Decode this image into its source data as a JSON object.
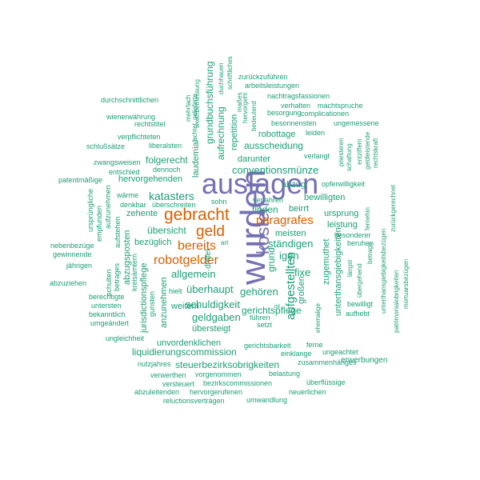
{
  "colors": {
    "green": "#1b9e77",
    "orange": "#d95f02",
    "purple": "#7570b3"
  },
  "words": {
    "wurden": "wurden",
    "auslagen": "auslagen",
    "kosten": "kosten",
    "gebracht": "gebracht",
    "geld": "geld",
    "paragrafes": "paragrafes",
    "bereits": "bereits",
    "robotgelder": "robotgelder",
    "aufgestellten": "aufgestellten",
    "katasters": "katasters",
    "conventionsmuenze": "conventionsmünze",
    "ausscheidung": "ausscheidung",
    "allgemein": "allgemein",
    "ueberhaupt": "überhaupt",
    "schuldigkeit": "schuldigkeit",
    "geldgaben": "geldgaben",
    "gehoeren": "gehören",
    "staendigen": "ständigen",
    "igen": "igen",
    "fixe": "fixe",
    "finden": "finden",
    "grund": "grund",
    "uebersicht": "übersicht",
    "bezueglich": "bezüglich",
    "zehente": "zehente",
    "folgerecht": "folgerecht",
    "hervorgehenden": "hervorgehenden",
    "darunter": "darunter",
    "robottage": "robottage",
    "abzug": "abzug",
    "bewilligten": "bewilligten",
    "ursprung": "ursprung",
    "leistung": "leistung",
    "meisten": "meisten",
    "beirrt": "beirrt",
    "gerichtspflege": "gerichtspflege",
    "uebersteigt": "übersteigt",
    "weitem": "weitem",
    "unvordenklichen": "unvordenklichen",
    "liquidierungscommission": "liquidierungscommission",
    "steuerbezirksobrigkeiten": "steuerbezirksobrigkeiten",
    "zugemuthet": "zugemuthet",
    "unterthansgiebigkeiten": "unterthansgiebigkeiten",
    "grossen": "großen",
    "grundbuchsfuehrung": "grundbuchsführung",
    "aufrechnung": "aufrechnung",
    "laudemial": "laudemial",
    "repetition": "repetition",
    "erwerbungen": "erwerbungen",
    "abzugsposten": "abzugsposten",
    "jurisdictionspflege": "jurisdictionspflege",
    "anzunehmen": "anzunehmen",
    "drittel": "drittel",
    "zurueckzufuehren": "zurückzuführen",
    "arbeitsleistungen": "arbeitsleistungen",
    "nachtragsfassionen": "nachtragsfassionen",
    "durchschnittlichen": "durchschnittlichen",
    "verhalten": "verhalten",
    "machtspruche": "machtspruche",
    "besorgung": "besorgung",
    "complicationen": "complicationen",
    "wienerwaehrung": "wienerwährung",
    "rechtstitel": "rechtstitel",
    "besonnensten": "besonnensten",
    "ungemessene": "ungemessene",
    "verpflichteten": "verpflichteten",
    "leiden": "leiden",
    "schlussaetze": "schlußsätze",
    "liberalsten": "liberalsten",
    "zwangsweisen": "zwangsweisen",
    "dennoch": "dennoch",
    "verlangt": "verlangt",
    "entschied": "entschied",
    "patentmaessige": "patentmäßige",
    "opferwilligkeit": "opferwilligkeit",
    "verfahren": "verfahren",
    "waerme": "wärme",
    "denkbar": "denkbar",
    "ueberschreiten": "überschreiten",
    "sohn": "sohn",
    "nebenbezuege": "nebenbezüge",
    "gewinnende": "gewinnende",
    "jaehrigen": "jährigen",
    "abzuziehen": "abzuziehen",
    "berechtigte": "berechtigte",
    "untersten": "untersten",
    "bekanntlich": "bekanntlich",
    "umgeaendert": "umgeändert",
    "ungleichheit": "ungleichheit",
    "hielt": "hielt",
    "fuehren": "führen",
    "setzt": "setzt",
    "gerichtsbarkeit": "gerichtsbarkeit",
    "ferne": "ferne",
    "einklange": "einklange",
    "ungeachtet": "ungeachtet",
    "nutzjahres": "nutzjahres",
    "zusammenhaenges": "zusammenhänges",
    "verwerthen": "verwerthen",
    "vorgenommen": "vorgenommen",
    "belastung": "belastung",
    "versteuert": "versteuert",
    "bezirkscommissionen": "bezirkscommissionen",
    "ueberfluessige": "überflüssige",
    "abzuleitenden": "abzuleitenden",
    "hervorgerufenen": "hervorgerufenen",
    "neuerlichen": "neuerlichen",
    "reluctionsvertraegen": "reluctionsverträgen",
    "umwandlung": "umwandlung",
    "besonderer": "besonderer",
    "beruhen": "beruhen",
    "bewilligt": "bewilligt",
    "aufhebt": "aufhebt",
    "art": "art",
    "gunsten": "gunsten",
    "ursprueungliche": "ursprüngliche",
    "empfunden": "empfunden",
    "aufzunehmen": "aufzunehmen",
    "aufstehen": "aufstehen",
    "schulten": "schulten",
    "betrages": "betrages",
    "kreisaemtern": "kreisämtern",
    "gelieferte": "gelieferte",
    "achtet": "achtet",
    "duchhauen": "duchhauen",
    "mehrfach": "mehrfach",
    "wertbemessung": "werthbemessung",
    "schriftliches": "schriftliches",
    "masses": "maßes",
    "hervorgeht": "hervorgeht",
    "bedeutend": "bedeutend",
    "priesteren": "priesteren",
    "schaftung": "schaftung",
    "entziffern": "entziffern",
    "geldleistende": "geldleistende",
    "rechtskraft": "rechtskraft",
    "zurueckgerechnet": "zurückgerechnet",
    "fernehin": "fernehin",
    "betrage": "betrage",
    "laengst": "längst",
    "uebergehend": "übergehend",
    "unterthansgiebigkeitsbezuegen": "unterthansgiebigkeitsbezügen",
    "patrimonialobrigkeiten": "patrimonialobrigkeiten",
    "mortuarsbezuegen": "mortuarsbezügen",
    "ehemalige": "ehemalige",
    "ist": "ist"
  }
}
